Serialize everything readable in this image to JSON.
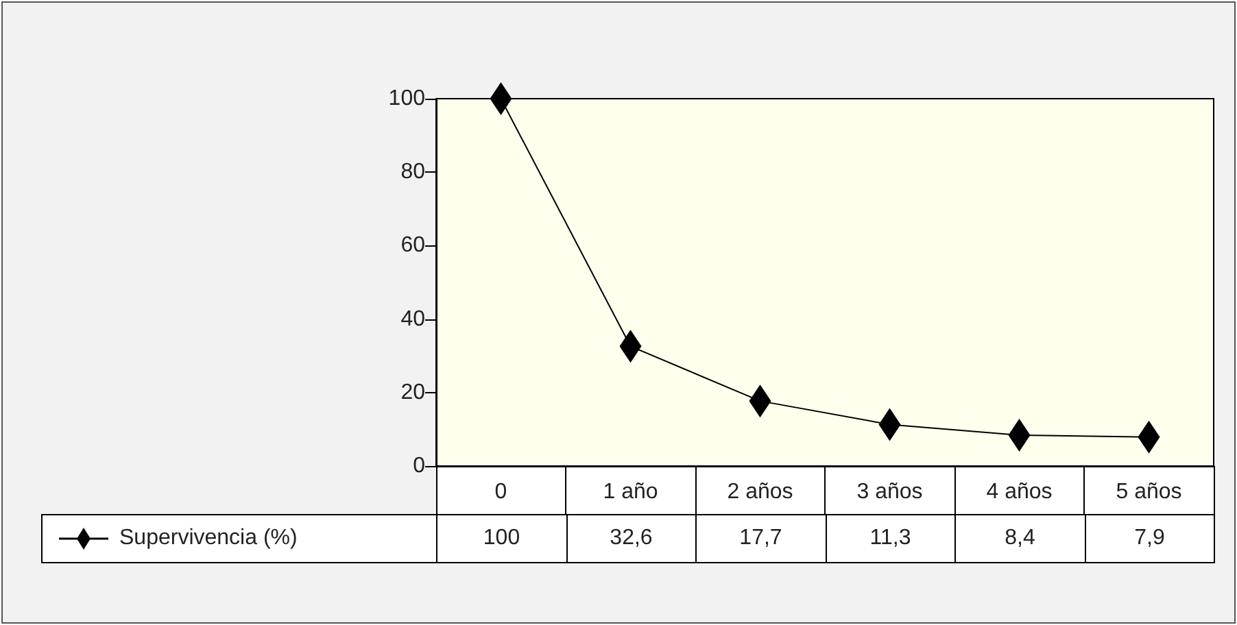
{
  "chart_data": {
    "type": "line",
    "categories": [
      "0",
      "1 año",
      "2 años",
      "3 años",
      "4 años",
      "5 años"
    ],
    "series": [
      {
        "name": "Supervivencia (%)",
        "color": "#000000",
        "values": [
          100,
          32.6,
          17.7,
          11.3,
          8.4,
          7.9
        ],
        "value_labels": [
          "100",
          "32,6",
          "17,7",
          "11,3",
          "8,4",
          "7,9"
        ]
      }
    ],
    "ylim": [
      0,
      100
    ],
    "yticks": [
      0,
      20,
      40,
      60,
      80,
      100
    ],
    "grid": false,
    "legend": "bottom left",
    "marker": "diamond",
    "line_style": "solid"
  }
}
